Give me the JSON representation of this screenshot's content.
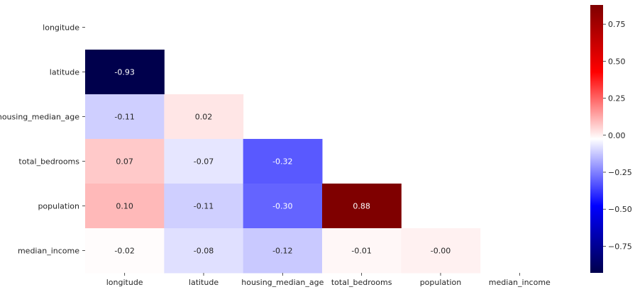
{
  "chart_data": {
    "type": "heatmap",
    "title": "",
    "xlabel": "",
    "ylabel": "",
    "x_labels": [
      "longitude",
      "latitude",
      "housing_median_age",
      "total_bedrooms",
      "population",
      "median_income"
    ],
    "y_labels": [
      "longitude",
      "latitude",
      "housing_median_age",
      "total_bedrooms",
      "population",
      "median_income"
    ],
    "mask": "upper-triangle-including-diagonal",
    "values": [
      [
        null,
        null,
        null,
        null,
        null,
        null
      ],
      [
        -0.93,
        null,
        null,
        null,
        null,
        null
      ],
      [
        -0.11,
        0.02,
        null,
        null,
        null,
        null
      ],
      [
        0.07,
        -0.07,
        -0.32,
        null,
        null,
        null
      ],
      [
        0.1,
        -0.11,
        -0.3,
        0.88,
        null,
        null
      ],
      [
        -0.02,
        -0.08,
        -0.12,
        -0.01,
        -0.0,
        null
      ]
    ],
    "cell_labels": [
      [
        null,
        null,
        null,
        null,
        null,
        null
      ],
      [
        "-0.93",
        null,
        null,
        null,
        null,
        null
      ],
      [
        "-0.11",
        "0.02",
        null,
        null,
        null,
        null
      ],
      [
        "0.07",
        "-0.07",
        "-0.32",
        null,
        null,
        null
      ],
      [
        "0.10",
        "-0.11",
        "-0.30",
        "0.88",
        null,
        null
      ],
      [
        "-0.02",
        "-0.08",
        "-0.12",
        "-0.01",
        "-0.00",
        null
      ]
    ],
    "colormap": "seismic",
    "colorbar": {
      "range": [
        -0.93,
        0.88
      ],
      "ticks": [
        0.75,
        0.5,
        0.25,
        0.0,
        -0.25,
        -0.5,
        -0.75
      ],
      "tick_labels": [
        "0.75",
        "0.50",
        "0.25",
        "0.00",
        "−0.25",
        "−0.50",
        "−0.75"
      ],
      "placement": "right"
    },
    "colors": {
      "negative_end": "#00004c",
      "mid_blue": "#0000ff",
      "center": "#ffffff",
      "mid_red": "#ff0000",
      "positive_end": "#7f0000"
    }
  }
}
